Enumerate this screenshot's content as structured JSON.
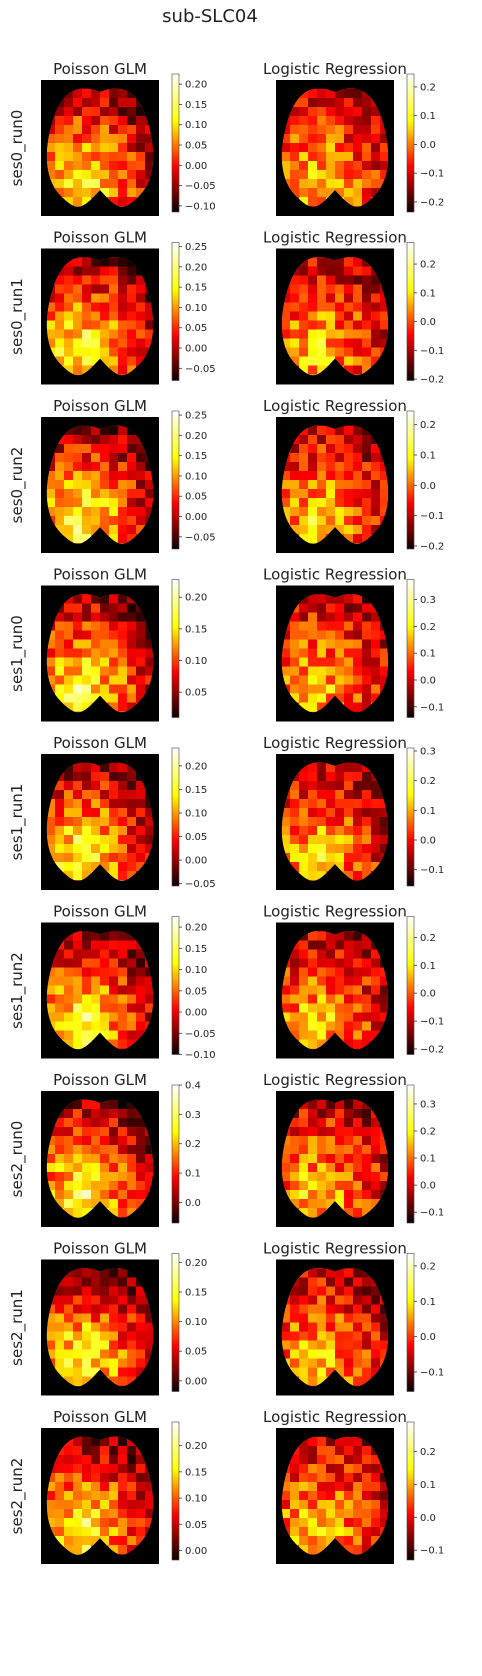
{
  "figure_title": "sub-SLC04",
  "panel_titles": {
    "left": "Poisson GLM",
    "right": "Logistic Regression"
  },
  "colormap": "hot",
  "colors": {
    "background": "#000000",
    "brain_outline": "#9a9a9a",
    "figure_bg": "#ffffff"
  },
  "chart_data": {
    "type": "heatmap",
    "title": "sub-SLC04",
    "rows": [
      {
        "label": "ses0_run0",
        "poisson": {
          "ticks": [
            "0.20",
            "0.15",
            "0.10",
            "0.05",
            "0.00",
            "−0.05",
            "−0.10"
          ],
          "range": [
            -0.115,
            0.225
          ]
        },
        "logistic": {
          "ticks": [
            "0.2",
            "0.1",
            "0.0",
            "−0.1",
            "−0.2"
          ],
          "range": [
            -0.235,
            0.245
          ]
        }
      },
      {
        "label": "ses0_run1",
        "poisson": {
          "ticks": [
            "0.25",
            "0.20",
            "0.15",
            "0.10",
            "0.05",
            "0.00",
            "−0.05"
          ],
          "range": [
            -0.08,
            0.26
          ]
        },
        "logistic": {
          "ticks": [
            "0.2",
            "0.1",
            "0.0",
            "−0.1",
            "−0.2"
          ],
          "range": [
            -0.205,
            0.275
          ]
        }
      },
      {
        "label": "ses0_run2",
        "poisson": {
          "ticks": [
            "0.25",
            "0.20",
            "0.15",
            "0.10",
            "0.05",
            "0.00",
            "−0.05"
          ],
          "range": [
            -0.08,
            0.26
          ]
        },
        "logistic": {
          "ticks": [
            "0.2",
            "0.1",
            "0.0",
            "−0.1",
            "−0.2"
          ],
          "range": [
            -0.21,
            0.245
          ]
        }
      },
      {
        "label": "ses1_run0",
        "poisson": {
          "ticks": [
            "0.20",
            "0.15",
            "0.10",
            "0.05"
          ],
          "range": [
            0.01,
            0.228
          ]
        },
        "logistic": {
          "ticks": [
            "0.3",
            "0.2",
            "0.1",
            "0.0",
            "−0.1"
          ],
          "range": [
            -0.14,
            0.375
          ]
        }
      },
      {
        "label": "ses1_run1",
        "poisson": {
          "ticks": [
            "0.20",
            "0.15",
            "0.10",
            "0.05",
            "0.00",
            "−0.05"
          ],
          "range": [
            -0.055,
            0.238
          ]
        },
        "logistic": {
          "ticks": [
            "0.3",
            "0.2",
            "0.1",
            "0.0",
            "−0.1"
          ],
          "range": [
            -0.155,
            0.31
          ]
        }
      },
      {
        "label": "ses1_run2",
        "poisson": {
          "ticks": [
            "0.20",
            "0.15",
            "0.10",
            "0.05",
            "0.00",
            "−0.05",
            "−0.10"
          ],
          "range": [
            -0.1,
            0.225
          ]
        },
        "logistic": {
          "ticks": [
            "0.2",
            "0.1",
            "0.0",
            "−0.1",
            "−0.2"
          ],
          "range": [
            -0.22,
            0.275
          ]
        }
      },
      {
        "label": "ses2_run0",
        "poisson": {
          "ticks": [
            "0.4",
            "0.3",
            "0.2",
            "0.1",
            "0.0"
          ],
          "range": [
            -0.07,
            0.4
          ]
        },
        "logistic": {
          "ticks": [
            "0.3",
            "0.2",
            "0.1",
            "0.0",
            "−0.1"
          ],
          "range": [
            -0.14,
            0.37
          ]
        }
      },
      {
        "label": "ses2_run1",
        "poisson": {
          "ticks": [
            "0.20",
            "0.15",
            "0.10",
            "0.05",
            "0.00"
          ],
          "range": [
            -0.018,
            0.215
          ]
        },
        "logistic": {
          "ticks": [
            "0.2",
            "0.1",
            "0.0",
            "−0.1"
          ],
          "range": [
            -0.155,
            0.235
          ]
        }
      },
      {
        "label": "ses2_run2",
        "poisson": {
          "ticks": [
            "0.20",
            "0.15",
            "0.10",
            "0.05",
            "0.00"
          ],
          "range": [
            -0.018,
            0.245
          ]
        },
        "logistic": {
          "ticks": [
            "0.2",
            "0.1",
            "0.0",
            "−0.1"
          ],
          "range": [
            -0.13,
            0.29
          ]
        }
      }
    ]
  }
}
